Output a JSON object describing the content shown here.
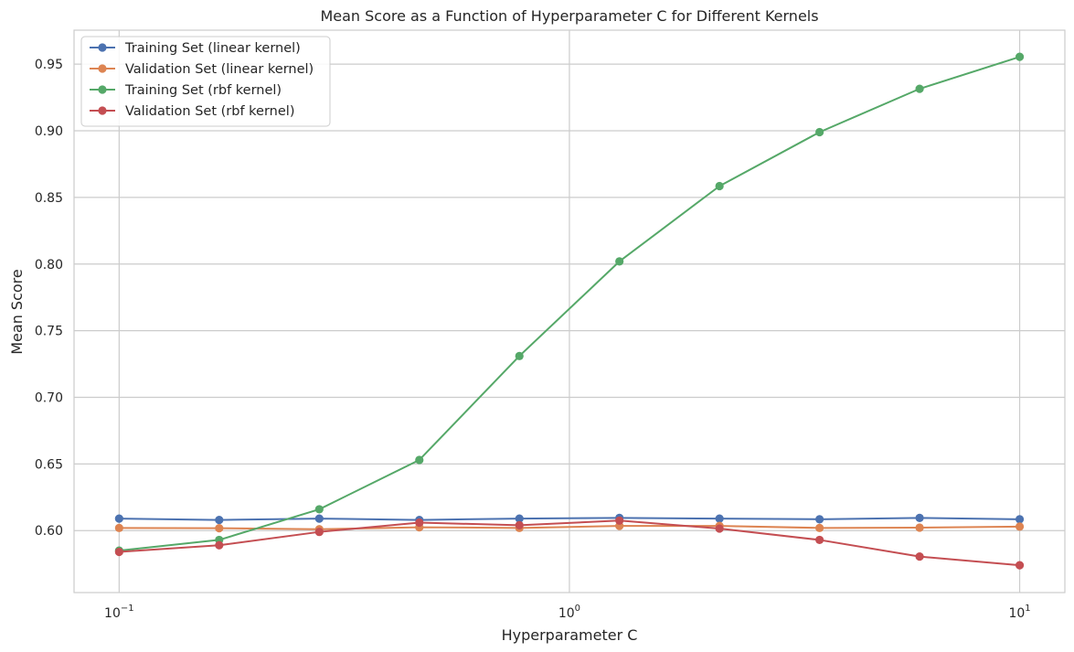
{
  "chart_data": {
    "type": "line",
    "title": "Mean Score as a Function of Hyperparameter C for Different Kernels",
    "xlabel": "Hyperparameter C",
    "ylabel": "Mean Score",
    "x_scale": "log",
    "xlim": [
      0.0794,
      12.6
    ],
    "ylim": [
      0.5535,
      0.9755
    ],
    "grid": true,
    "legend_position": "top-left",
    "x": [
      0.1,
      0.1668,
      0.2783,
      0.4642,
      0.7743,
      1.2915,
      2.1544,
      3.5938,
      5.9948,
      10.0
    ],
    "x_ticks": [
      {
        "value": 0.1,
        "base": "10",
        "exp": "−1"
      },
      {
        "value": 1,
        "base": "10",
        "exp": "0"
      },
      {
        "value": 10,
        "base": "10",
        "exp": "1"
      }
    ],
    "y_ticks": [
      0.6,
      0.65,
      0.7,
      0.75,
      0.8,
      0.85,
      0.9,
      0.95
    ],
    "y_tick_labels": [
      "0.60",
      "0.65",
      "0.70",
      "0.75",
      "0.80",
      "0.85",
      "0.90",
      "0.95"
    ],
    "series": [
      {
        "name": "Training Set (linear kernel)",
        "color": "#4c72b0",
        "values": [
          0.609,
          0.608,
          0.609,
          0.608,
          0.609,
          0.6095,
          0.609,
          0.6085,
          0.6095,
          0.6085
        ]
      },
      {
        "name": "Validation Set (linear kernel)",
        "color": "#dd8452",
        "values": [
          0.602,
          0.6018,
          0.601,
          0.6025,
          0.602,
          0.6035,
          0.6035,
          0.602,
          0.6022,
          0.603
        ]
      },
      {
        "name": "Training Set (rbf kernel)",
        "color": "#55a868",
        "values": [
          0.585,
          0.593,
          0.616,
          0.653,
          0.731,
          0.802,
          0.8585,
          0.899,
          0.9315,
          0.9555
        ]
      },
      {
        "name": "Validation Set (rbf kernel)",
        "color": "#c44e52",
        "values": [
          0.584,
          0.589,
          0.599,
          0.606,
          0.604,
          0.6075,
          0.6015,
          0.593,
          0.5805,
          0.574
        ]
      }
    ]
  }
}
